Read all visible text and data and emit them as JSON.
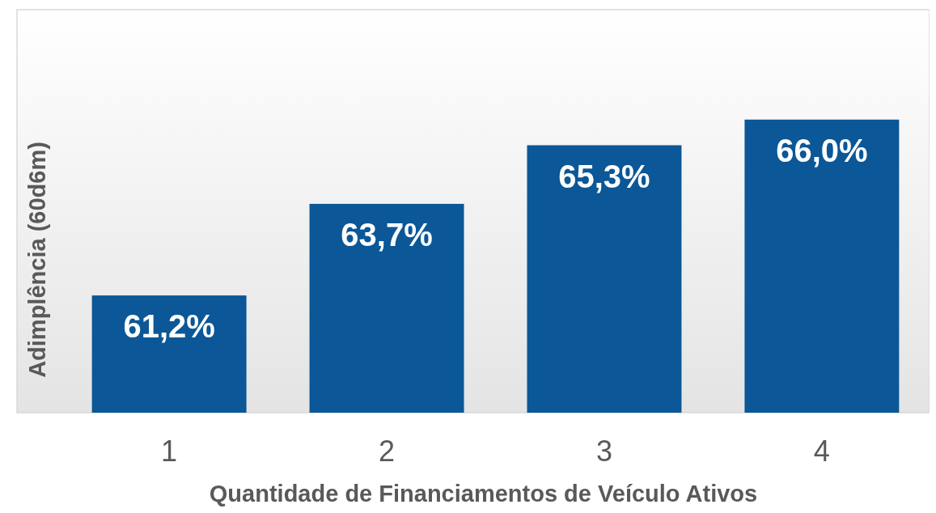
{
  "chart_data": {
    "type": "bar",
    "categories": [
      "1",
      "2",
      "3",
      "4"
    ],
    "values": [
      61.2,
      63.7,
      65.3,
      66.0
    ],
    "value_labels": [
      "61,2%",
      "63,7%",
      "65,3%",
      "66,0%"
    ],
    "color": "#0b5797",
    "ylim": [
      58,
      69
    ],
    "xlabel": "Quantidade de Financiamentos de Veículo Ativos",
    "ylabel": "Adimplência (60d6m)",
    "grid": false
  }
}
